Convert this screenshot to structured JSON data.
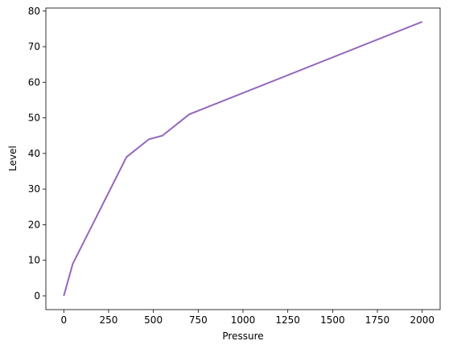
{
  "chart_data": {
    "type": "line",
    "x": [
      0,
      50,
      350,
      475,
      550,
      700,
      2000
    ],
    "values": [
      0,
      9,
      39,
      44,
      45,
      51,
      77
    ],
    "color": "#9467bd",
    "xlabel": "Pressure",
    "ylabel": "Level",
    "xlim": [
      -100,
      2100
    ],
    "ylim": [
      -3.85,
      80.85
    ],
    "xticks": [
      0,
      250,
      500,
      750,
      1000,
      1250,
      1500,
      1750,
      2000
    ],
    "yticks": [
      0,
      10,
      20,
      30,
      40,
      50,
      60,
      70,
      80
    ],
    "grid": false
  }
}
